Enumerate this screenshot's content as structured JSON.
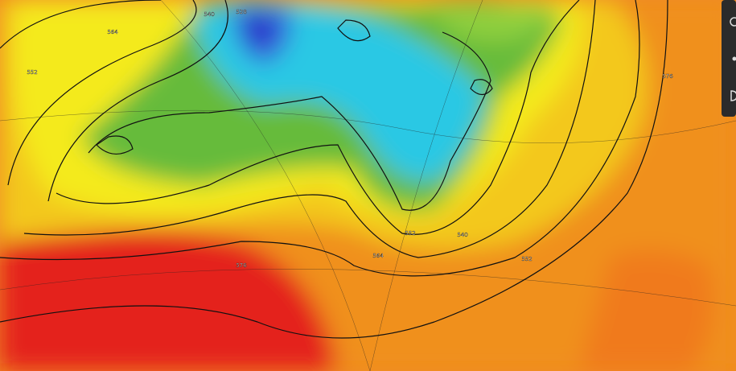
{
  "map": {
    "contour_labels": [
      "528",
      "540",
      "552",
      "564",
      "576",
      "552",
      "564",
      "576",
      "540",
      "552"
    ]
  }
}
